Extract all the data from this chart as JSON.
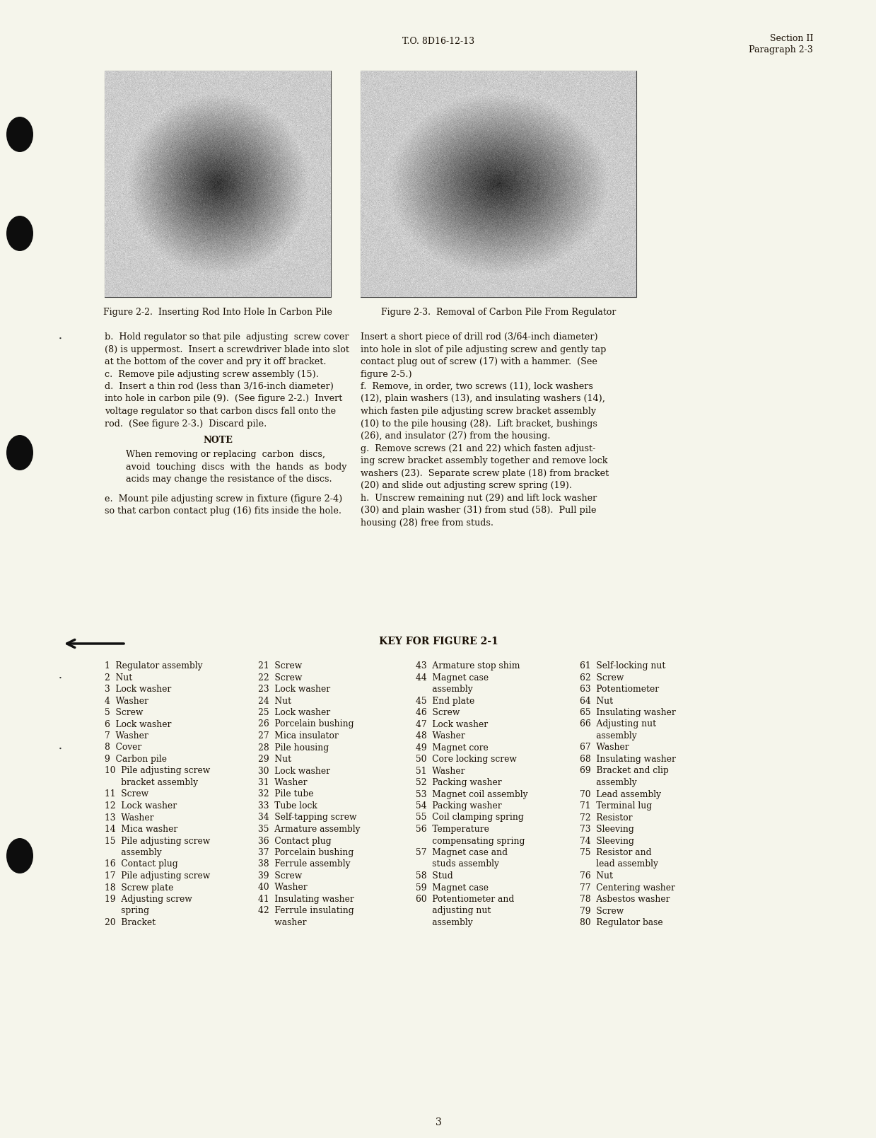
{
  "background_color": "#f5f5eb",
  "header_left": "T.O. 8D16-12-13",
  "header_right_line1": "Section II",
  "header_right_line2": "Paragraph 2-3",
  "footer_page_num": "3",
  "fig2_caption": "Figure 2-2.  Inserting Rod Into Hole In Carbon Pile",
  "fig3_caption": "Figure 2-3.  Removal of Carbon Pile From Regulator",
  "left_body_text": [
    "b.  Hold regulator so that pile  adjusting  screw cover",
    "(8) is uppermost.  Insert a screwdriver blade into slot",
    "at the bottom of the cover and pry it off bracket.",
    "c.  Remove pile adjusting screw assembly (15).",
    "d.  Insert a thin rod (less than 3/16-inch diameter)",
    "into hole in carbon pile (9).  (See figure 2-2.)  Invert",
    "voltage regulator so that carbon discs fall onto the",
    "rod.  (See figure 2-3.)  Discard pile."
  ],
  "note_title": "NOTE",
  "note_text": [
    "When removing or replacing  carbon  discs,",
    "avoid  touching  discs  with  the  hands  as  body",
    "acids may change the resistance of the discs."
  ],
  "left_body_text2": [
    "e.  Mount pile adjusting screw in fixture (figure 2-4)",
    "so that carbon contact plug (16) fits inside the hole."
  ],
  "right_body_text": [
    "Insert a short piece of drill rod (3/64-inch diameter)",
    "into hole in slot of pile adjusting screw and gently tap",
    "contact plug out of screw (17) with a hammer.  (See",
    "figure 2-5.)",
    "f.  Remove, in order, two screws (11), lock washers",
    "(12), plain washers (13), and insulating washers (14),",
    "which fasten pile adjusting screw bracket assembly",
    "(10) to the pile housing (28).  Lift bracket, bushings",
    "(26), and insulator (27) from the housing.",
    "g.  Remove screws (21 and 22) which fasten adjust-",
    "ing screw bracket assembly together and remove lock",
    "washers (23).  Separate screw plate (18) from bracket",
    "(20) and slide out adjusting screw spring (19).",
    "h.  Unscrew remaining nut (29) and lift lock washer",
    "(30) and plain washer (31) from stud (58).  Pull pile",
    "housing (28) free from studs."
  ],
  "key_title": "KEY FOR FIGURE 2-1",
  "key_col1": [
    "1  Regulator assembly",
    "2  Nut",
    "3  Lock washer",
    "4  Washer",
    "5  Screw",
    "6  Lock washer",
    "7  Washer",
    "8  Cover",
    "9  Carbon pile",
    "10  Pile adjusting screw",
    "      bracket assembly",
    "11  Screw",
    "12  Lock washer",
    "13  Washer",
    "14  Mica washer",
    "15  Pile adjusting screw",
    "      assembly",
    "16  Contact plug",
    "17  Pile adjusting screw",
    "18  Screw plate",
    "19  Adjusting screw",
    "      spring",
    "20  Bracket"
  ],
  "key_col2": [
    "21  Screw",
    "22  Screw",
    "23  Lock washer",
    "24  Nut",
    "25  Lock washer",
    "26  Porcelain bushing",
    "27  Mica insulator",
    "28  Pile housing",
    "29  Nut",
    "30  Lock washer",
    "31  Washer",
    "32  Pile tube",
    "33  Tube lock",
    "34  Self-tapping screw",
    "35  Armature assembly",
    "36  Contact plug",
    "37  Porcelain bushing",
    "38  Ferrule assembly",
    "39  Screw",
    "40  Washer",
    "41  Insulating washer",
    "42  Ferrule insulating",
    "      washer"
  ],
  "key_col3": [
    "43  Armature stop shim",
    "44  Magnet case",
    "      assembly",
    "45  End plate",
    "46  Screw",
    "47  Lock washer",
    "48  Washer",
    "49  Magnet core",
    "50  Core locking screw",
    "51  Washer",
    "52  Packing washer",
    "53  Magnet coil assembly",
    "54  Packing washer",
    "55  Coil clamping spring",
    "56  Temperature",
    "      compensating spring",
    "57  Magnet case and",
    "      studs assembly",
    "58  Stud",
    "59  Magnet case",
    "60  Potentiometer and",
    "      adjusting nut",
    "      assembly"
  ],
  "key_col4": [
    "61  Self-locking nut",
    "62  Screw",
    "63  Potentiometer",
    "64  Nut",
    "65  Insulating washer",
    "66  Adjusting nut",
    "      assembly",
    "67  Washer",
    "68  Insulating washer",
    "69  Bracket and clip",
    "      assembly",
    "70  Lead assembly",
    "71  Terminal lug",
    "72  Resistor",
    "73  Sleeving",
    "74  Sleeving",
    "75  Resistor and",
    "      lead assembly",
    "76  Nut",
    "77  Centering washer",
    "78  Asbestos washer",
    "79  Screw",
    "80  Regulator base"
  ]
}
